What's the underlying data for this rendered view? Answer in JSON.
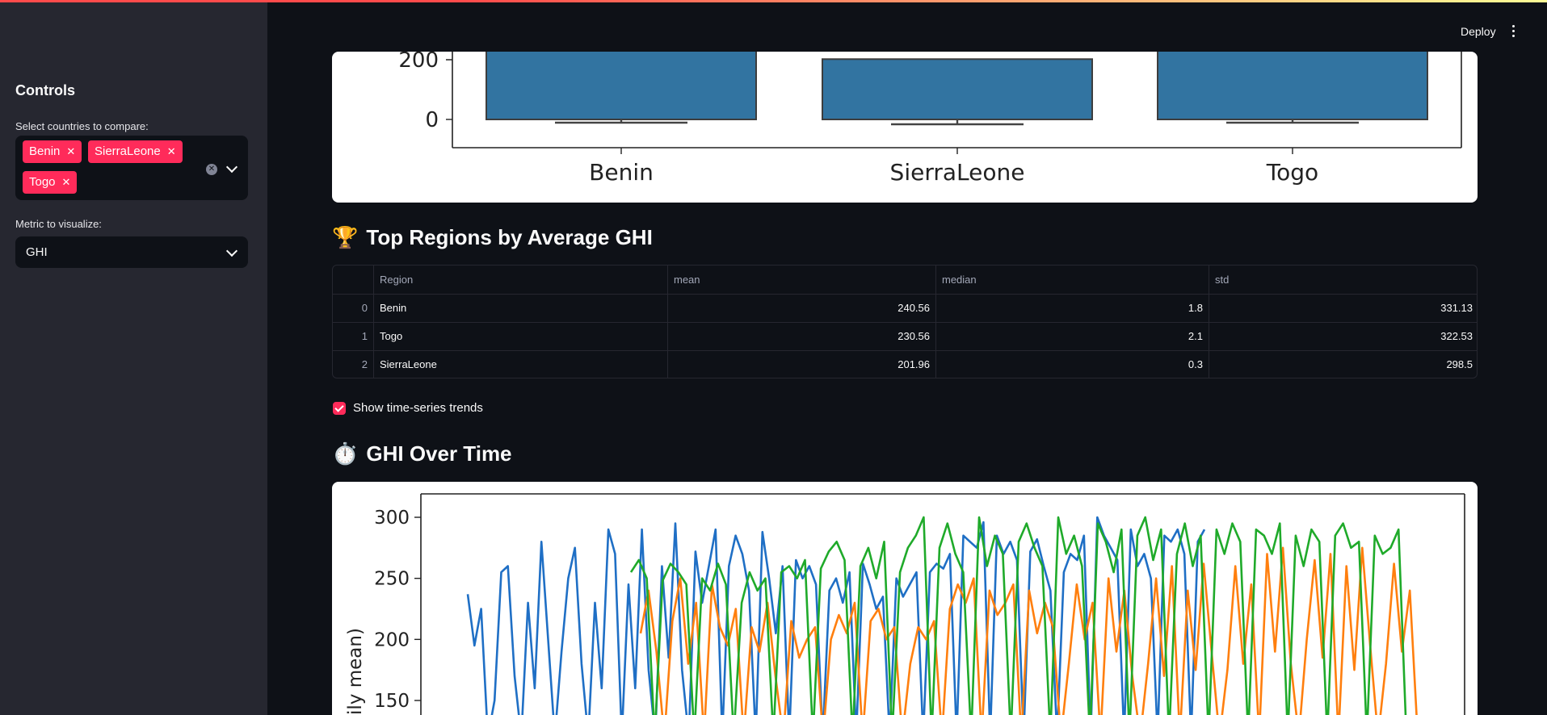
{
  "sidebar": {
    "title": "Controls",
    "countries_label": "Select countries to compare:",
    "selected_countries": [
      "Benin",
      "SierraLeone",
      "Togo"
    ],
    "metric_label": "Metric to visualize:",
    "metric_value": "GHI"
  },
  "header": {
    "deploy_label": "Deploy"
  },
  "bar_chart": {
    "y_ticks": [
      "200",
      "0"
    ],
    "categories": [
      "Benin",
      "SierraLeone",
      "Togo"
    ]
  },
  "top_regions": {
    "emoji": "🏆",
    "heading": "Top Regions by Average GHI",
    "columns": [
      "",
      "Region",
      "mean",
      "median",
      "std"
    ],
    "rows": [
      {
        "index": "0",
        "region": "Benin",
        "mean": "240.56",
        "median": "1.8",
        "std": "331.13"
      },
      {
        "index": "1",
        "region": "Togo",
        "mean": "230.56",
        "median": "2.1",
        "std": "322.53"
      },
      {
        "index": "2",
        "region": "SierraLeone",
        "mean": "201.96",
        "median": "0.3",
        "std": "298.5"
      }
    ]
  },
  "trend_toggle": {
    "label": "Show time-series trends",
    "checked": true
  },
  "time_series": {
    "emoji": "⏱️",
    "heading": "GHI Over Time",
    "ylabel_visible": "ily mean)",
    "y_ticks": [
      "300",
      "250",
      "200",
      "150"
    ]
  },
  "chart_data": [
    {
      "type": "bar",
      "categories": [
        "Benin",
        "SierraLeone",
        "Togo"
      ],
      "values": [
        240.56,
        201.96,
        230.56
      ],
      "ylabel": "",
      "colors": [
        "#3274a1"
      ]
    },
    {
      "type": "line",
      "ylabel": "ily mean)",
      "ylim": [
        140,
        310
      ],
      "colors": {
        "Benin": "#1f6fc5",
        "SierraLeone": "#ff7f0e",
        "Togo": "#1faa2a"
      },
      "series": [
        {
          "values": [
            237,
            195,
            225,
            210,
            150,
            255,
            260,
            170,
            245,
            230,
            160,
            280,
            200,
            303,
            190,
            250,
            275,
            180,
            285,
            230,
            160,
            290,
            270,
            210,
            245,
            160,
            290,
            175,
            280,
            260,
            185,
            295,
            175,
            268,
            272,
            230,
            260,
            290,
            280,
            260,
            285,
            270,
            240,
            265,
            288,
            250,
            205,
            260,
            255,
            265,
            250,
            260,
            245,
            265,
            240,
            250,
            230,
            255,
            240,
            262,
            245,
            225,
            235,
            240,
            250,
            235,
            245,
            255,
            240,
            255,
            262,
            258,
            270,
            268,
            285,
            280,
            275,
            296,
            290,
            285,
            270,
            280,
            265,
            290,
            272,
            282,
            260,
            240,
            230,
            255,
            270,
            265,
            285,
            290,
            300,
            285,
            275,
            265,
            280,
            290,
            260,
            270,
            250,
            265,
            285,
            280,
            290,
            270,
            260,
            280,
            290
          ]
        },
        {
          "values": [
            205,
            240,
            190,
            230,
            215,
            250,
            180,
            230,
            200,
            245,
            210,
            195,
            225,
            175,
            210,
            190,
            230,
            170,
            205,
            215,
            185,
            200,
            210,
            190,
            200,
            220,
            205,
            230,
            185,
            215,
            225,
            200,
            210,
            195,
            180,
            210,
            200,
            215,
            190,
            225,
            245,
            230,
            250,
            210,
            240,
            220,
            230,
            245,
            220,
            240,
            205,
            230,
            210,
            240,
            180,
            245,
            200,
            230,
            175,
            250,
            190,
            240,
            170,
            255,
            180,
            250,
            170,
            260,
            185,
            240,
            175,
            262,
            190,
            250,
            175,
            260,
            180,
            245,
            185,
            270,
            190,
            275,
            180,
            250,
            200,
            265,
            185,
            270,
            195,
            260,
            175,
            275,
            195,
            268,
            180,
            262,
            190,
            240,
            155
          ]
        },
        {
          "values": [
            255,
            265,
            250,
            260,
            248,
            262,
            255,
            245,
            258,
            250,
            240,
            262,
            245,
            250,
            230,
            255,
            240,
            250,
            235,
            255,
            260,
            250,
            265,
            270,
            258,
            272,
            280,
            265,
            290,
            260,
            275,
            250,
            280,
            270,
            255,
            275,
            285,
            300,
            290,
            275,
            295,
            270,
            255,
            280,
            300,
            260,
            285,
            270,
            290,
            280,
            295,
            275,
            260,
            280,
            300,
            270,
            285,
            260,
            275,
            295,
            280,
            255,
            290,
            270,
            285,
            300,
            265,
            290,
            280,
            270,
            295,
            260,
            285,
            275,
            290,
            270,
            295,
            280,
            265,
            290,
            285,
            270,
            295,
            275,
            285,
            260,
            290,
            280,
            270,
            285,
            295,
            275,
            280,
            260,
            285,
            270,
            275,
            290,
            280
          ]
        }
      ]
    }
  ]
}
